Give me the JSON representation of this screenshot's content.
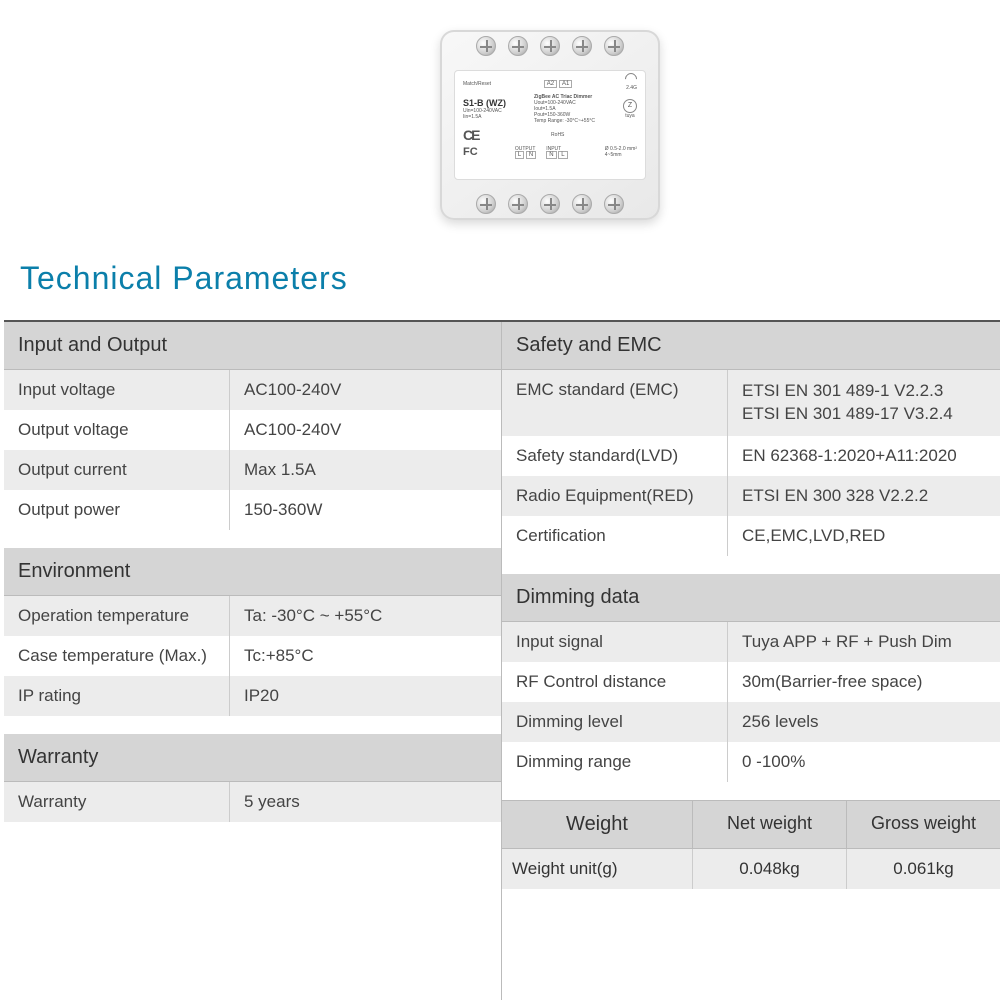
{
  "product": {
    "model": "S1-B (WZ)",
    "subtitle": "ZigBee AC Triac Dimmer",
    "uin": "Uin=100-240VAC",
    "iin": "Iin=1.5A",
    "uout": "Uout=100-240VAC",
    "iout": "Iout=1.5A",
    "pout": "Pout=150-360W",
    "temp": "Temp Range: -30°C~+55°C",
    "rohs": "RoHS",
    "output_lbl_l": "L",
    "output_lbl_n": "N",
    "input_lbl_n": "N",
    "input_lbl_l": "L",
    "output_txt": "OUTPUT",
    "input_txt": "INPUT",
    "a1": "A1",
    "a2": "A2",
    "band": "2.4G",
    "tuya": "tuya",
    "match": "Match/Reset",
    "wire": "Ø 0.5-2.0 mm²",
    "strip": "4~5mm"
  },
  "page_title": "Technical Parameters",
  "left_sections": [
    {
      "header": "Input and Output",
      "rows": [
        {
          "k": "Input voltage",
          "v": "AC100-240V",
          "alt": true
        },
        {
          "k": "Output voltage",
          "v": "AC100-240V",
          "alt": false
        },
        {
          "k": "Output current",
          "v": "Max 1.5A",
          "alt": true
        },
        {
          "k": "Output power",
          "v": "150-360W",
          "alt": false
        }
      ]
    },
    {
      "header": "Environment",
      "rows": [
        {
          "k": "Operation temperature",
          "v": "Ta: -30°C ~ +55°C",
          "alt": true
        },
        {
          "k": "Case temperature (Max.)",
          "v": "Tc:+85°C",
          "alt": false
        },
        {
          "k": "IP rating",
          "v": "IP20",
          "alt": true
        }
      ]
    },
    {
      "header": "Warranty",
      "rows": [
        {
          "k": "Warranty",
          "v": "5 years",
          "alt": true
        }
      ]
    }
  ],
  "right_sections": [
    {
      "header": "Safety and EMC",
      "rows": [
        {
          "k": "EMC standard (EMC)",
          "v": "ETSI EN 301 489-1 V2.2.3\nETSI EN 301 489-17 V3.2.4",
          "alt": true,
          "multi": true
        },
        {
          "k": "Safety standard(LVD)",
          "v": "EN 62368-1:2020+A11:2020",
          "alt": false
        },
        {
          "k": "Radio Equipment(RED)",
          "v": "ETSI EN 300 328 V2.2.2",
          "alt": true
        },
        {
          "k": "Certification",
          "v": "CE,EMC,LVD,RED",
          "alt": false
        }
      ]
    },
    {
      "header": "Dimming data",
      "rows": [
        {
          "k": "Input signal",
          "v": "Tuya APP + RF + Push Dim",
          "alt": true
        },
        {
          "k": "RF Control distance",
          "v": "30m(Barrier-free space)",
          "alt": false
        },
        {
          "k": "Dimming level",
          "v": "256 levels",
          "alt": true
        },
        {
          "k": "Dimming range",
          "v": "0 -100%",
          "alt": false
        }
      ]
    }
  ],
  "weight": {
    "header_a": "Weight",
    "header_b": "Net weight",
    "header_c": "Gross weight",
    "row_a": "Weight unit(g)",
    "row_b": "0.048kg",
    "row_c": "0.061kg"
  },
  "colors": {
    "title": "#0b7faa",
    "header_bg": "#d5d5d5",
    "alt_bg": "#ececec",
    "border": "#bbbbbb",
    "text": "#444444"
  }
}
